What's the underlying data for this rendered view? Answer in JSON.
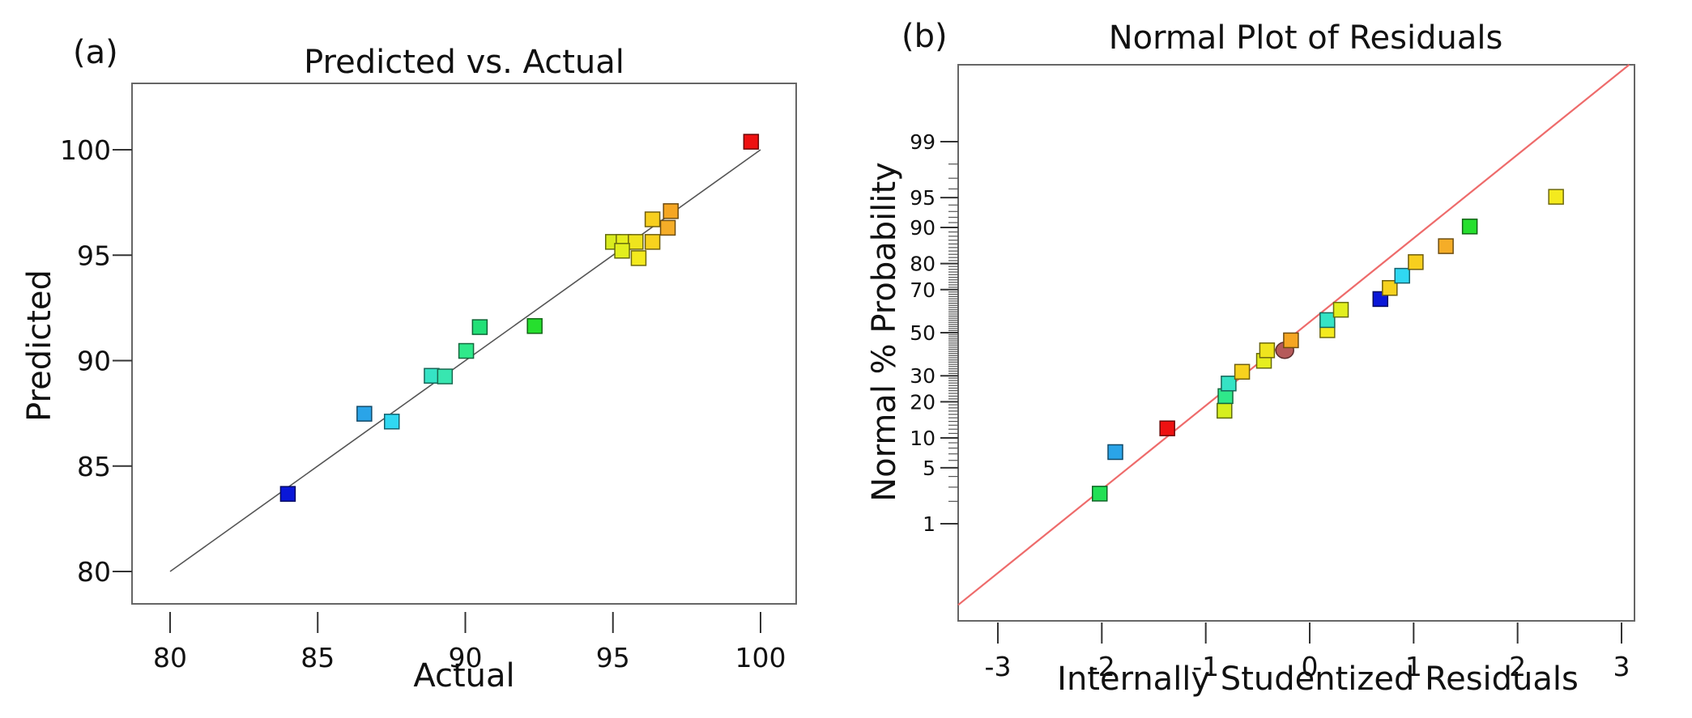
{
  "chart_data": [
    {
      "type": "scatter",
      "panel_label": "(a)",
      "title": "Predicted vs. Actual",
      "xlabel": "Actual",
      "ylabel": "Predicted",
      "xlim": [
        78.5,
        101.5
      ],
      "ylim": [
        77.8,
        103.1
      ],
      "xticks": [
        80,
        85,
        90,
        95,
        100
      ],
      "yticks": [
        80,
        85,
        90,
        95,
        100
      ],
      "xtick_labels": [
        "80",
        "85",
        "90",
        "95",
        "100"
      ],
      "ytick_labels": [
        "80",
        "85",
        "90",
        "95",
        "100"
      ],
      "grid": false,
      "reference_line": {
        "from": [
          80,
          80
        ],
        "to": [
          100,
          100
        ],
        "color": "#555555"
      },
      "points": [
        {
          "x": 99.68,
          "y": 100.38,
          "color": "#ee1111"
        },
        {
          "x": 96.96,
          "y": 97.09,
          "color": "#f5a623"
        },
        {
          "x": 96.34,
          "y": 96.7,
          "color": "#f7cf1e"
        },
        {
          "x": 96.86,
          "y": 96.3,
          "color": "#f5ad28"
        },
        {
          "x": 95.0,
          "y": 95.63,
          "color": "#d9ec1e"
        },
        {
          "x": 95.36,
          "y": 95.63,
          "color": "#e6ee1e"
        },
        {
          "x": 95.77,
          "y": 95.63,
          "color": "#efe41e"
        },
        {
          "x": 96.34,
          "y": 95.63,
          "color": "#f7d21e"
        },
        {
          "x": 95.31,
          "y": 95.21,
          "color": "#e2ef1e"
        },
        {
          "x": 95.87,
          "y": 94.86,
          "color": "#f4ea1e"
        },
        {
          "x": 90.49,
          "y": 91.59,
          "color": "#22e077"
        },
        {
          "x": 92.35,
          "y": 91.64,
          "color": "#26df2e"
        },
        {
          "x": 90.03,
          "y": 90.46,
          "color": "#2fe88a"
        },
        {
          "x": 88.86,
          "y": 89.28,
          "color": "#35e3c5"
        },
        {
          "x": 89.31,
          "y": 89.25,
          "color": "#38e6b0"
        },
        {
          "x": 86.58,
          "y": 87.48,
          "color": "#2aa4e8"
        },
        {
          "x": 87.51,
          "y": 87.11,
          "color": "#30d8f2"
        },
        {
          "x": 83.99,
          "y": 83.68,
          "color": "#0a17d8"
        }
      ]
    },
    {
      "type": "scatter",
      "panel_label": "(b)",
      "title": "Normal Plot of Residuals",
      "xlabel": "Internally Studentized Residuals",
      "ylabel": "Normal % Probability",
      "xlim": [
        -3.4,
        3.4
      ],
      "y_scale": "normal-probability",
      "ylim_percent": [
        0.05,
        99.95
      ],
      "xticks": [
        -3,
        -2,
        -1,
        0,
        1,
        2,
        3
      ],
      "xtick_labels": [
        "-3",
        "-2",
        "-1",
        "0",
        "1",
        "2",
        "3"
      ],
      "yticks": [
        1,
        5,
        10,
        20,
        30,
        50,
        70,
        80,
        90,
        95,
        99
      ],
      "ytick_labels": [
        "1",
        "5",
        "10",
        "20",
        "30",
        "50",
        "70",
        "80",
        "90",
        "95",
        "99"
      ],
      "grid": false,
      "reference_line": {
        "color": "#ee6b6b",
        "slope_z_per_residual": 0.975,
        "intercept_z": 0.0
      },
      "points": [
        {
          "x": -2.02,
          "y": 2.5,
          "color": "#22e055",
          "shape": "square"
        },
        {
          "x": -1.87,
          "y": 7.3,
          "color": "#2aa4e8",
          "shape": "square"
        },
        {
          "x": -1.37,
          "y": 12.2,
          "color": "#ee1111",
          "shape": "square"
        },
        {
          "x": -0.82,
          "y": 17.1,
          "color": "#d6ee1e",
          "shape": "square"
        },
        {
          "x": -0.81,
          "y": 22.0,
          "color": "#2fe88a",
          "shape": "square"
        },
        {
          "x": -0.78,
          "y": 26.8,
          "color": "#35e3c5",
          "shape": "square"
        },
        {
          "x": -0.65,
          "y": 31.7,
          "color": "#f7d21e",
          "shape": "square"
        },
        {
          "x": -0.44,
          "y": 36.6,
          "color": "#e6ee1e",
          "shape": "square"
        },
        {
          "x": -0.41,
          "y": 41.5,
          "color": "#efe41e",
          "shape": "square"
        },
        {
          "x": -0.24,
          "y": 41.5,
          "color": "#b55a5a",
          "shape": "circle"
        },
        {
          "x": -0.18,
          "y": 46.3,
          "color": "#f5a623",
          "shape": "square"
        },
        {
          "x": 0.17,
          "y": 51.2,
          "color": "#f4ea1e",
          "shape": "square"
        },
        {
          "x": 0.17,
          "y": 56.1,
          "color": "#35e3c5",
          "shape": "square"
        },
        {
          "x": 0.3,
          "y": 61.0,
          "color": "#e2ef1e",
          "shape": "square"
        },
        {
          "x": 0.68,
          "y": 65.9,
          "color": "#0a17d8",
          "shape": "square"
        },
        {
          "x": 0.77,
          "y": 70.7,
          "color": "#f7d21e",
          "shape": "square"
        },
        {
          "x": 0.89,
          "y": 75.6,
          "color": "#30d8f2",
          "shape": "square"
        },
        {
          "x": 1.02,
          "y": 80.5,
          "color": "#f7cf1e",
          "shape": "square"
        },
        {
          "x": 1.31,
          "y": 85.4,
          "color": "#f5ad28",
          "shape": "square"
        },
        {
          "x": 1.54,
          "y": 90.2,
          "color": "#26df2e",
          "shape": "square"
        },
        {
          "x": 2.37,
          "y": 95.1,
          "color": "#f4ea1e",
          "shape": "square"
        }
      ]
    }
  ]
}
